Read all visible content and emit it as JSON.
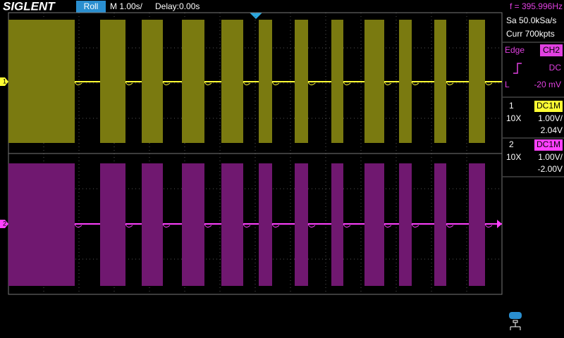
{
  "header": {
    "logo": "SIGLENT",
    "mode": "Roll",
    "timebase": "M 1.00s/",
    "delay": "Delay:0.00s",
    "frequency": "f = 395.996Hz"
  },
  "acquisition": {
    "sample_rate": "Sa 50.0kSa/s",
    "memory": "Curr 700kpts"
  },
  "trigger": {
    "type": "Edge",
    "source": "CH2",
    "coupling": "DC",
    "level_label": "L",
    "level": "-20 mV"
  },
  "channels": [
    {
      "number": "1",
      "coupling": "DC1M",
      "probe": "10X",
      "scale": "1.00V/",
      "offset": "2.04V"
    },
    {
      "number": "2",
      "coupling": "DC1M",
      "probe": "10X",
      "scale": "1.00V/",
      "offset": "-2.00V"
    }
  ]
}
